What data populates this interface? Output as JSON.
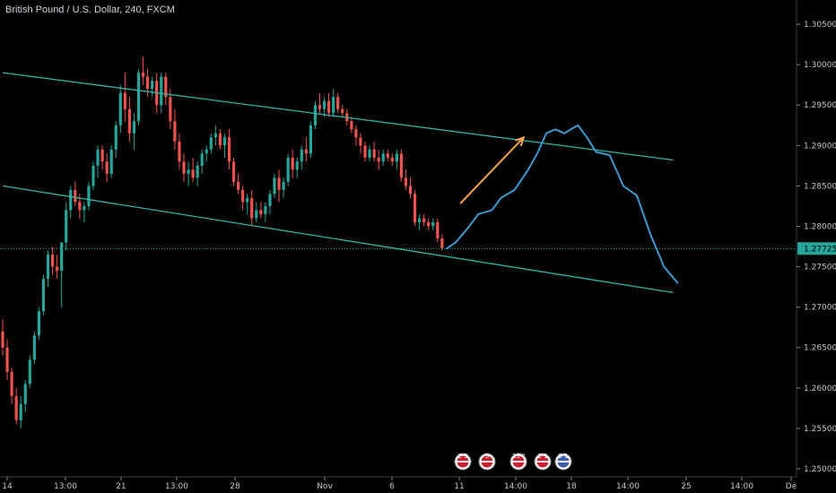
{
  "header": {
    "title": "British Pound / U.S. Dollar, 240, FXCM"
  },
  "colors": {
    "background": "#000000",
    "up": "#26a69a",
    "down": "#ef5350",
    "channel": "#2fb5a5",
    "projection": "#3d9ad1",
    "arrow": "#f5a64c",
    "price_tag_bg": "#26a69a"
  },
  "last_price": {
    "label": "1.27725",
    "value": 1.27725
  },
  "event_markers": [
    {
      "label": "2 9",
      "icon": "flag-uk-icon"
    },
    {
      "label": "5",
      "icon": "flag-uk-icon"
    },
    {
      "label": "15 \"",
      "icon": "flag-uk-icon"
    },
    {
      "label": "2 1",
      "icon": "flag-uk-icon"
    },
    {
      "label": "9 1",
      "icon": "flag-us-icon"
    }
  ],
  "chart_data": {
    "type": "candlestick",
    "title": "British Pound / U.S. Dollar, 240, FXCM",
    "ylim": [
      1.249,
      1.308
    ],
    "y_ticks": [
      "1.30500",
      "1.30000",
      "1.29500",
      "1.29000",
      "1.28500",
      "1.28000",
      "1.27500",
      "1.27000",
      "1.26500",
      "1.26000",
      "1.25500",
      "1.25000"
    ],
    "x_ticks": [
      "14",
      "13:00",
      "21",
      "13:00",
      "28",
      "Nov",
      "6",
      "11",
      "14:00",
      "18",
      "14:00",
      "25",
      "14:00",
      "De"
    ],
    "grid": false,
    "candles": [
      [
        1.267,
        1.2685,
        1.264,
        1.265
      ],
      [
        1.265,
        1.266,
        1.261,
        1.262
      ],
      [
        1.262,
        1.2625,
        1.258,
        1.259
      ],
      [
        1.259,
        1.26,
        1.2555,
        1.256
      ],
      [
        1.256,
        1.259,
        1.255,
        1.258
      ],
      [
        1.258,
        1.261,
        1.257,
        1.2605
      ],
      [
        1.2605,
        1.264,
        1.26,
        1.2635
      ],
      [
        1.2635,
        1.267,
        1.263,
        1.2665
      ],
      [
        1.2665,
        1.27,
        1.266,
        1.2695
      ],
      [
        1.2695,
        1.274,
        1.269,
        1.2735
      ],
      [
        1.2735,
        1.277,
        1.2725,
        1.2765
      ],
      [
        1.2765,
        1.2775,
        1.274,
        1.275
      ],
      [
        1.275,
        1.2765,
        1.2735,
        1.2745
      ],
      [
        1.2745,
        1.278,
        1.27,
        1.278
      ],
      [
        1.278,
        1.283,
        1.277,
        1.282
      ],
      [
        1.282,
        1.285,
        1.281,
        1.2845
      ],
      [
        1.2845,
        1.2855,
        1.2825,
        1.283
      ],
      [
        1.283,
        1.284,
        1.281,
        1.282
      ],
      [
        1.282,
        1.283,
        1.2805,
        1.2825
      ],
      [
        1.2825,
        1.2855,
        1.282,
        1.285
      ],
      [
        1.285,
        1.288,
        1.2845,
        1.2875
      ],
      [
        1.2875,
        1.29,
        1.286,
        1.2895
      ],
      [
        1.2895,
        1.29,
        1.287,
        1.288
      ],
      [
        1.288,
        1.289,
        1.2855,
        1.2865
      ],
      [
        1.2865,
        1.29,
        1.286,
        1.2895
      ],
      [
        1.2895,
        1.293,
        1.2885,
        1.2925
      ],
      [
        1.2925,
        1.2975,
        1.2915,
        1.2965
      ],
      [
        1.2965,
        1.299,
        1.293,
        1.2945
      ],
      [
        1.2945,
        1.296,
        1.2905,
        1.2915
      ],
      [
        1.2915,
        1.294,
        1.2895,
        1.293
      ],
      [
        1.293,
        1.2995,
        1.2925,
        1.299
      ],
      [
        1.299,
        1.301,
        1.2975,
        1.2985
      ],
      [
        1.2985,
        1.2995,
        1.296,
        1.297
      ],
      [
        1.297,
        1.2985,
        1.296,
        1.298
      ],
      [
        1.298,
        1.299,
        1.294,
        1.295
      ],
      [
        1.295,
        1.299,
        1.294,
        1.2985
      ],
      [
        1.2985,
        1.299,
        1.295,
        1.296
      ],
      [
        1.296,
        1.297,
        1.292,
        1.293
      ],
      [
        1.293,
        1.2945,
        1.2895,
        1.2905
      ],
      [
        1.2905,
        1.2915,
        1.287,
        1.288
      ],
      [
        1.288,
        1.289,
        1.2855,
        1.2865
      ],
      [
        1.2865,
        1.288,
        1.285,
        1.287
      ],
      [
        1.287,
        1.2885,
        1.2855,
        1.286
      ],
      [
        1.286,
        1.288,
        1.285,
        1.2875
      ],
      [
        1.2875,
        1.2895,
        1.2865,
        1.289
      ],
      [
        1.289,
        1.29,
        1.288,
        1.2895
      ],
      [
        1.2895,
        1.2915,
        1.289,
        1.291
      ],
      [
        1.291,
        1.2925,
        1.29,
        1.2915
      ],
      [
        1.2915,
        1.292,
        1.2895,
        1.29
      ],
      [
        1.29,
        1.2915,
        1.2885,
        1.291
      ],
      [
        1.291,
        1.292,
        1.287,
        1.288
      ],
      [
        1.288,
        1.2885,
        1.285,
        1.2855
      ],
      [
        1.2855,
        1.2865,
        1.284,
        1.2845
      ],
      [
        1.2845,
        1.285,
        1.282,
        1.283
      ],
      [
        1.283,
        1.284,
        1.2815,
        1.2835
      ],
      [
        1.2835,
        1.2845,
        1.28,
        1.281
      ],
      [
        1.281,
        1.283,
        1.2805,
        1.282
      ],
      [
        1.282,
        1.283,
        1.281,
        1.2815
      ],
      [
        1.2815,
        1.283,
        1.2805,
        1.2825
      ],
      [
        1.2825,
        1.2845,
        1.2815,
        1.284
      ],
      [
        1.284,
        1.2865,
        1.2835,
        1.286
      ],
      [
        1.286,
        1.287,
        1.283,
        1.2845
      ],
      [
        1.2845,
        1.286,
        1.2835,
        1.2855
      ],
      [
        1.2855,
        1.289,
        1.285,
        1.2885
      ],
      [
        1.2885,
        1.2895,
        1.286,
        1.287
      ],
      [
        1.287,
        1.2885,
        1.286,
        1.288
      ],
      [
        1.288,
        1.29,
        1.287,
        1.2895
      ],
      [
        1.2895,
        1.291,
        1.288,
        1.289
      ],
      [
        1.289,
        1.293,
        1.2885,
        1.2925
      ],
      [
        1.2925,
        1.2955,
        1.292,
        1.295
      ],
      [
        1.295,
        1.2965,
        1.294,
        1.2945
      ],
      [
        1.2945,
        1.296,
        1.2935,
        1.2955
      ],
      [
        1.2955,
        1.2965,
        1.2935,
        1.294
      ],
      [
        1.294,
        1.297,
        1.2935,
        1.296
      ],
      [
        1.296,
        1.2965,
        1.294,
        1.2945
      ],
      [
        1.2945,
        1.295,
        1.2935,
        1.294
      ],
      [
        1.294,
        1.2945,
        1.2925,
        1.293
      ],
      [
        1.293,
        1.2935,
        1.2915,
        1.292
      ],
      [
        1.292,
        1.2925,
        1.29,
        1.291
      ],
      [
        1.291,
        1.2915,
        1.289,
        1.29
      ],
      [
        1.29,
        1.2905,
        1.288,
        1.2885
      ],
      [
        1.2885,
        1.29,
        1.288,
        1.2895
      ],
      [
        1.2895,
        1.2905,
        1.288,
        1.2885
      ],
      [
        1.2885,
        1.2895,
        1.287,
        1.288
      ],
      [
        1.288,
        1.2895,
        1.2875,
        1.289
      ],
      [
        1.289,
        1.2895,
        1.288,
        1.2885
      ],
      [
        1.2885,
        1.289,
        1.2875,
        1.288
      ],
      [
        1.288,
        1.2895,
        1.287,
        1.289
      ],
      [
        1.289,
        1.2895,
        1.2855,
        1.286
      ],
      [
        1.286,
        1.287,
        1.2845,
        1.285
      ],
      [
        1.285,
        1.286,
        1.2835,
        1.284
      ],
      [
        1.284,
        1.2845,
        1.28,
        1.2805
      ],
      [
        1.2805,
        1.2815,
        1.2795,
        1.281
      ],
      [
        1.281,
        1.2815,
        1.28,
        1.2805
      ],
      [
        1.2805,
        1.281,
        1.2795,
        1.28
      ],
      [
        1.28,
        1.281,
        1.2795,
        1.2805
      ],
      [
        1.2805,
        1.281,
        1.278,
        1.2785
      ],
      [
        1.2785,
        1.279,
        1.277,
        1.2773
      ]
    ],
    "channel": {
      "upper": [
        [
          0,
          1.299
        ],
        [
          148,
          1.2882
        ]
      ],
      "lower": [
        [
          0,
          1.285
        ],
        [
          148,
          1.2718
        ]
      ]
    },
    "projection": [
      [
        98,
        1.27725
      ],
      [
        100,
        1.278
      ],
      [
        103,
        1.28
      ],
      [
        105,
        1.2815
      ],
      [
        108,
        1.282
      ],
      [
        110,
        1.2835
      ],
      [
        113,
        1.2845
      ],
      [
        116,
        1.287
      ],
      [
        118,
        1.289
      ],
      [
        120,
        1.2915
      ],
      [
        122,
        1.292
      ],
      [
        124,
        1.2915
      ],
      [
        126,
        1.2922
      ],
      [
        127,
        1.2925
      ],
      [
        129,
        1.291
      ],
      [
        131,
        1.2892
      ],
      [
        134,
        1.2888
      ],
      [
        137,
        1.285
      ],
      [
        140,
        1.2838
      ],
      [
        143,
        1.279
      ],
      [
        146,
        1.275
      ],
      [
        149,
        1.273
      ]
    ],
    "arrow": {
      "from": [
        101,
        1.2828
      ],
      "to": [
        115,
        1.291
      ]
    }
  }
}
